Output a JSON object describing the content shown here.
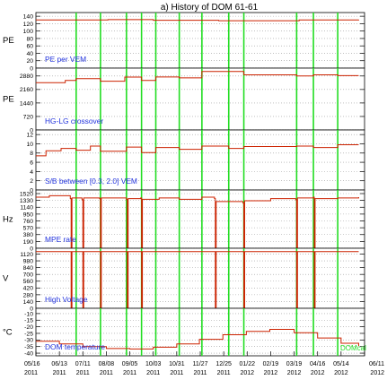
{
  "chart_data": {
    "type": "line",
    "title": "a) History of DOM 61-61",
    "x_axis": {
      "ticks": [
        {
          "date": "05/16",
          "year": "2011"
        },
        {
          "date": "06/13",
          "year": "2011"
        },
        {
          "date": "07/11",
          "year": "2011"
        },
        {
          "date": "08/08",
          "year": "2011"
        },
        {
          "date": "09/05",
          "year": "2011"
        },
        {
          "date": "10/03",
          "year": "2011"
        },
        {
          "date": "10/31",
          "year": "2011"
        },
        {
          "date": "11/27",
          "year": "2011"
        },
        {
          "date": "12/25",
          "year": "2011"
        },
        {
          "date": "01/22",
          "year": "2012"
        },
        {
          "date": "02/19",
          "year": "2012"
        },
        {
          "date": "03/19",
          "year": "2012"
        },
        {
          "date": "04/16",
          "year": "2012"
        },
        {
          "date": "05/14",
          "year": "2012"
        },
        {
          "date": "06/11",
          "year": "2012"
        }
      ],
      "range": [
        "2011-05-16",
        "2012-06-11"
      ]
    },
    "vertical_markers": {
      "color": "#22dd22",
      "dates": [
        "2011-07-03",
        "2011-08-01",
        "2011-09-01",
        "2011-09-19",
        "2011-10-06",
        "2011-11-03",
        "2011-11-30",
        "2012-01-01",
        "2012-01-19",
        "2012-03-22",
        "2012-04-11",
        "2012-05-10"
      ]
    },
    "line_color": "#cc2200",
    "panels": [
      {
        "ylabel": "PE",
        "label": "PE per VEM",
        "ylim": [
          0,
          150
        ],
        "yticks": [
          "0",
          "20",
          "40",
          "60",
          "80",
          "100",
          "120",
          "140"
        ],
        "points": [
          [
            "2011-05-16",
            130
          ],
          [
            "2011-08-10",
            131
          ],
          [
            "2011-10-03",
            129
          ],
          [
            "2011-12-20",
            128
          ],
          [
            "2012-02-10",
            128
          ],
          [
            "2012-03-25",
            130
          ],
          [
            "2012-06-04",
            131
          ]
        ]
      },
      {
        "ylabel": "PE",
        "label": "HG-LG crossover",
        "ylim": [
          0,
          3300
        ],
        "yticks": [
          "0",
          "720",
          "1440",
          "2160",
          "2880"
        ],
        "points": [
          [
            "2011-05-16",
            2520
          ],
          [
            "2011-06-20",
            2640
          ],
          [
            "2011-07-03",
            2740
          ],
          [
            "2011-08-01",
            2600
          ],
          [
            "2011-08-30",
            2820
          ],
          [
            "2011-09-19",
            2640
          ],
          [
            "2011-10-06",
            2830
          ],
          [
            "2011-11-03",
            2780
          ],
          [
            "2011-11-30",
            3120
          ],
          [
            "2012-01-19",
            2940
          ],
          [
            "2012-03-22",
            2880
          ],
          [
            "2012-04-11",
            2940
          ],
          [
            "2012-05-10",
            2900
          ],
          [
            "2012-06-04",
            2900
          ]
        ]
      },
      {
        "ylabel": "",
        "label": "S/B between [0.3, 2.0] VEM",
        "ylim": [
          0,
          13
        ],
        "yticks": [
          "0",
          "2",
          "4",
          "6",
          "8",
          "10",
          "12"
        ],
        "points": [
          [
            "2011-05-16",
            7.4
          ],
          [
            "2011-05-28",
            8.5
          ],
          [
            "2011-06-15",
            9.0
          ],
          [
            "2011-07-03",
            8.6
          ],
          [
            "2011-07-20",
            9.5
          ],
          [
            "2011-08-01",
            8.4
          ],
          [
            "2011-09-01",
            9.3
          ],
          [
            "2011-09-19",
            8.1
          ],
          [
            "2011-10-06",
            9.2
          ],
          [
            "2011-11-03",
            8.8
          ],
          [
            "2011-11-30",
            9.5
          ],
          [
            "2012-01-01",
            9.0
          ],
          [
            "2012-01-19",
            9.4
          ],
          [
            "2012-03-22",
            9.5
          ],
          [
            "2012-04-11",
            9.2
          ],
          [
            "2012-05-10",
            9.8
          ],
          [
            "2012-06-04",
            9.8
          ]
        ]
      },
      {
        "ylabel": "Hz",
        "label": "MPE rate",
        "ylim": [
          0,
          1620
        ],
        "yticks": [
          "0",
          "190",
          "380",
          "570",
          "760",
          "950",
          "1140",
          "1330",
          "1520"
        ],
        "points": [
          [
            "2011-05-16",
            1420
          ],
          [
            "2011-06-01",
            1460
          ],
          [
            "2011-06-26",
            1380
          ],
          [
            "2011-06-27",
            0
          ],
          [
            "2011-06-28",
            1400
          ],
          [
            "2011-07-10",
            1350
          ],
          [
            "2011-07-11",
            0
          ],
          [
            "2011-07-12",
            1400
          ],
          [
            "2011-07-31",
            1380
          ],
          [
            "2011-08-01",
            0
          ],
          [
            "2011-08-02",
            1400
          ],
          [
            "2011-09-01",
            1360
          ],
          [
            "2011-09-02",
            0
          ],
          [
            "2011-09-03",
            1380
          ],
          [
            "2011-09-18",
            1400
          ],
          [
            "2011-09-19",
            0
          ],
          [
            "2011-09-20",
            1360
          ],
          [
            "2011-10-10",
            1400
          ],
          [
            "2011-11-03",
            1360
          ],
          [
            "2011-11-30",
            1420
          ],
          [
            "2011-12-15",
            1380
          ],
          [
            "2011-12-16",
            0
          ],
          [
            "2011-12-17",
            1300
          ],
          [
            "2012-01-18",
            1260
          ],
          [
            "2012-01-19",
            0
          ],
          [
            "2012-01-20",
            1320
          ],
          [
            "2012-02-20",
            1380
          ],
          [
            "2012-03-21",
            1350
          ],
          [
            "2012-03-22",
            0
          ],
          [
            "2012-03-23",
            1400
          ],
          [
            "2012-04-11",
            1420
          ],
          [
            "2012-04-12",
            0
          ],
          [
            "2012-04-13",
            1380
          ],
          [
            "2012-05-10",
            1400
          ],
          [
            "2012-06-04",
            1420
          ]
        ]
      },
      {
        "ylabel": "V",
        "label": "High Voltage",
        "ylim": [
          0,
          1240
        ],
        "yticks": [
          "0",
          "140",
          "280",
          "420",
          "560",
          "700",
          "840",
          "980",
          "1120"
        ],
        "points": [
          [
            "2011-05-16",
            1170
          ],
          [
            "2011-06-26",
            1170
          ],
          [
            "2011-06-27",
            0
          ],
          [
            "2011-06-28",
            1170
          ],
          [
            "2011-07-10",
            1170
          ],
          [
            "2011-07-11",
            0
          ],
          [
            "2011-07-12",
            1170
          ],
          [
            "2011-07-31",
            1170
          ],
          [
            "2011-08-01",
            0
          ],
          [
            "2011-08-02",
            1170
          ],
          [
            "2011-09-01",
            1170
          ],
          [
            "2011-09-02",
            0
          ],
          [
            "2011-09-03",
            1170
          ],
          [
            "2011-09-18",
            1170
          ],
          [
            "2011-09-19",
            0
          ],
          [
            "2011-09-20",
            1170
          ],
          [
            "2011-12-15",
            1170
          ],
          [
            "2011-12-16",
            0
          ],
          [
            "2011-12-17",
            1170
          ],
          [
            "2012-01-18",
            1170
          ],
          [
            "2012-01-19",
            0
          ],
          [
            "2012-01-20",
            1170
          ],
          [
            "2012-03-21",
            1170
          ],
          [
            "2012-03-22",
            0
          ],
          [
            "2012-03-23",
            1170
          ],
          [
            "2012-04-11",
            1170
          ],
          [
            "2012-04-12",
            0
          ],
          [
            "2012-04-13",
            1170
          ],
          [
            "2012-06-04",
            1170
          ]
        ]
      },
      {
        "ylabel": "°C",
        "label": "DOM temperature",
        "ylim": [
          -42,
          -6
        ],
        "yticks": [
          "-40",
          "-35",
          "-30",
          "-25",
          "-20",
          "-15",
          "-10"
        ],
        "annotation": "DOMcal",
        "points": [
          [
            "2011-05-16",
            -31.0
          ],
          [
            "2011-06-13",
            -33.0
          ],
          [
            "2011-07-11",
            -35.0
          ],
          [
            "2011-08-08",
            -36.5
          ],
          [
            "2011-09-05",
            -36.8
          ],
          [
            "2011-10-03",
            -35.5
          ],
          [
            "2011-10-31",
            -33.0
          ],
          [
            "2011-11-27",
            -29.5
          ],
          [
            "2011-12-25",
            -26.0
          ],
          [
            "2012-01-22",
            -23.5
          ],
          [
            "2012-02-19",
            -22.0
          ],
          [
            "2012-03-19",
            -24.5
          ],
          [
            "2012-04-16",
            -28.5
          ],
          [
            "2012-05-14",
            -32.5
          ],
          [
            "2012-06-04",
            -34.5
          ]
        ]
      }
    ]
  }
}
